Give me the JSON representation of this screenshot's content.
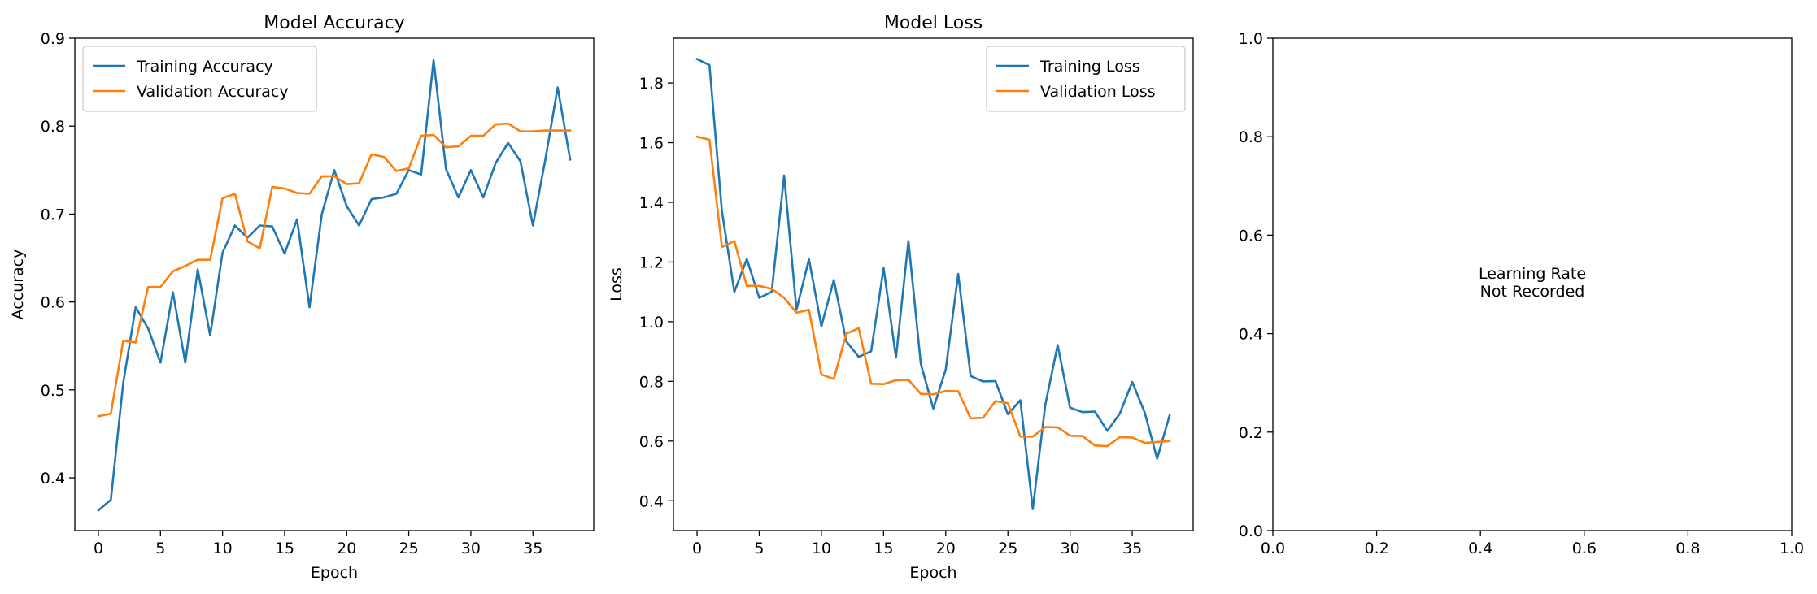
{
  "chart_data": [
    {
      "type": "line",
      "title": "Model Accuracy",
      "xlabel": "Epoch",
      "ylabel": "Accuracy",
      "xlim": [
        -1.9,
        39.9
      ],
      "ylim": [
        0.34,
        0.9
      ],
      "xticks": [
        0,
        5,
        10,
        15,
        20,
        25,
        30,
        35
      ],
      "yticks": [
        0.4,
        0.5,
        0.6,
        0.7,
        0.8,
        0.9
      ],
      "grid": false,
      "legend": "upper left",
      "series": [
        {
          "name": "Training Accuracy",
          "color": "#1f77b4",
          "x": [
            0,
            1,
            2,
            3,
            4,
            5,
            6,
            7,
            8,
            9,
            10,
            11,
            12,
            13,
            14,
            15,
            16,
            17,
            18,
            19,
            20,
            21,
            22,
            23,
            24,
            25,
            26,
            27,
            28,
            29,
            30,
            31,
            32,
            33,
            34,
            35,
            36,
            37,
            38
          ],
          "values": [
            0.363,
            0.375,
            0.508,
            0.594,
            0.57,
            0.531,
            0.611,
            0.531,
            0.637,
            0.562,
            0.656,
            0.687,
            0.673,
            0.687,
            0.686,
            0.655,
            0.694,
            0.594,
            0.7,
            0.75,
            0.709,
            0.687,
            0.717,
            0.719,
            0.723,
            0.75,
            0.745,
            0.875,
            0.751,
            0.719,
            0.75,
            0.719,
            0.758,
            0.781,
            0.76,
            0.687,
            0.762,
            0.844,
            0.762
          ]
        },
        {
          "name": "Validation Accuracy",
          "color": "#ff7f0e",
          "x": [
            0,
            1,
            2,
            3,
            4,
            5,
            6,
            7,
            8,
            9,
            10,
            11,
            12,
            13,
            14,
            15,
            16,
            17,
            18,
            19,
            20,
            21,
            22,
            23,
            24,
            25,
            26,
            27,
            28,
            29,
            30,
            31,
            32,
            33,
            34,
            35,
            36,
            37,
            38
          ],
          "values": [
            0.47,
            0.473,
            0.556,
            0.554,
            0.617,
            0.617,
            0.635,
            0.641,
            0.648,
            0.648,
            0.718,
            0.723,
            0.669,
            0.661,
            0.731,
            0.729,
            0.724,
            0.723,
            0.743,
            0.743,
            0.734,
            0.735,
            0.768,
            0.765,
            0.749,
            0.752,
            0.789,
            0.79,
            0.776,
            0.777,
            0.789,
            0.789,
            0.802,
            0.803,
            0.794,
            0.794,
            0.795,
            0.795,
            0.795
          ]
        }
      ]
    },
    {
      "type": "line",
      "title": "Model Loss",
      "xlabel": "Epoch",
      "ylabel": "Loss",
      "xlim": [
        -1.9,
        39.9
      ],
      "ylim": [
        0.3,
        1.95
      ],
      "xticks": [
        0,
        5,
        10,
        15,
        20,
        25,
        30,
        35
      ],
      "yticks": [
        0.4,
        0.6,
        0.8,
        1.0,
        1.2,
        1.4,
        1.6,
        1.8
      ],
      "grid": false,
      "legend": "upper right",
      "series": [
        {
          "name": "Training Loss",
          "color": "#1f77b4",
          "x": [
            0,
            1,
            2,
            3,
            4,
            5,
            6,
            7,
            8,
            9,
            10,
            11,
            12,
            13,
            14,
            15,
            16,
            17,
            18,
            19,
            20,
            21,
            22,
            23,
            24,
            25,
            26,
            27,
            28,
            29,
            30,
            31,
            32,
            33,
            34,
            35,
            36,
            37,
            38
          ],
          "values": [
            1.88,
            1.86,
            1.37,
            1.1,
            1.21,
            1.08,
            1.1,
            1.49,
            1.04,
            1.21,
            0.985,
            1.14,
            0.934,
            0.882,
            0.901,
            1.18,
            0.88,
            1.27,
            0.858,
            0.709,
            0.84,
            1.16,
            0.818,
            0.8,
            0.801,
            0.69,
            0.737,
            0.372,
            0.72,
            0.922,
            0.712,
            0.697,
            0.699,
            0.634,
            0.692,
            0.798,
            0.696,
            0.541,
            0.686
          ]
        },
        {
          "name": "Validation Loss",
          "color": "#ff7f0e",
          "x": [
            0,
            1,
            2,
            3,
            4,
            5,
            6,
            7,
            8,
            9,
            10,
            11,
            12,
            13,
            14,
            15,
            16,
            17,
            18,
            19,
            20,
            21,
            22,
            23,
            24,
            25,
            26,
            27,
            28,
            29,
            30,
            31,
            32,
            33,
            34,
            35,
            36,
            37,
            38
          ],
          "values": [
            1.62,
            1.61,
            1.25,
            1.27,
            1.12,
            1.12,
            1.11,
            1.08,
            1.03,
            1.04,
            0.823,
            0.808,
            0.96,
            0.978,
            0.792,
            0.791,
            0.804,
            0.805,
            0.758,
            0.757,
            0.768,
            0.767,
            0.676,
            0.678,
            0.734,
            0.727,
            0.615,
            0.615,
            0.647,
            0.646,
            0.618,
            0.617,
            0.585,
            0.583,
            0.613,
            0.612,
            0.594,
            0.597,
            0.6
          ]
        }
      ]
    },
    {
      "type": "line",
      "title": "",
      "xlabel": "",
      "ylabel": "",
      "xlim": [
        0,
        1
      ],
      "ylim": [
        0,
        1
      ],
      "xticks": [
        0.0,
        0.2,
        0.4,
        0.6,
        0.8,
        1.0
      ],
      "yticks": [
        0.0,
        0.2,
        0.4,
        0.6,
        0.8,
        1.0
      ],
      "grid": false,
      "series": [],
      "annotation": [
        "Learning Rate",
        "Not Recorded"
      ]
    }
  ]
}
